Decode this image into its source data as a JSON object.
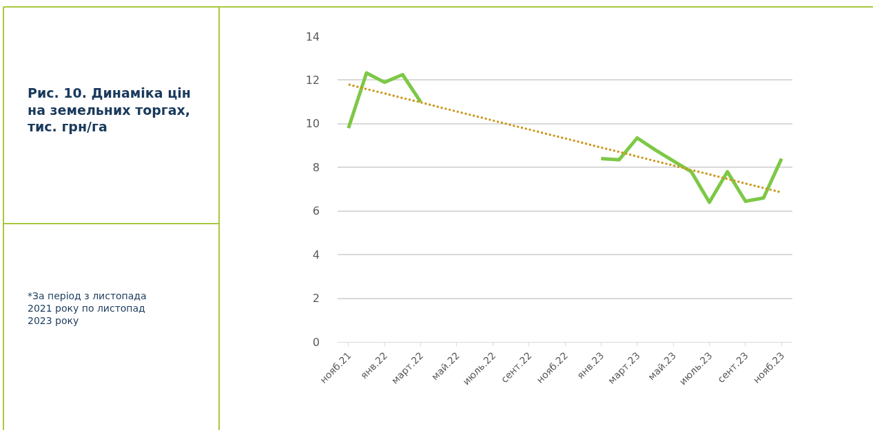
{
  "chart_data": {
    "type": "line",
    "title": "Рис. 10. Динаміка цін на земельних торгах, тис. грн/га",
    "annotations": [
      "*За період з листопада 2021 року по листопад 2023 року"
    ],
    "categories": [
      "нояб.21",
      null,
      "янв.22",
      null,
      "март.22",
      null,
      "май.22",
      null,
      "июль.22",
      null,
      "сент.22",
      null,
      "нояб.22",
      null,
      "янв.23",
      null,
      "март.23",
      null,
      "май.23",
      null,
      "июль.23",
      null,
      "сент.23",
      null,
      "нояб.23"
    ],
    "series": [
      {
        "color": "#7dc846",
        "values": [
          9.8,
          12.33,
          11.9,
          12.25,
          11.0,
          null,
          null,
          null,
          null,
          null,
          null,
          null,
          null,
          null,
          8.4,
          8.35,
          9.35,
          8.8,
          8.3,
          7.8,
          6.4,
          7.8,
          6.45,
          6.6,
          8.4
        ]
      },
      {
        "color": "#c9961a",
        "line_style": "dotted",
        "values": [
          11.8,
          11.59,
          11.39,
          11.18,
          10.98,
          10.77,
          10.56,
          10.36,
          10.15,
          9.94,
          9.74,
          9.53,
          9.33,
          9.12,
          8.91,
          8.71,
          8.5,
          8.29,
          8.09,
          7.88,
          7.68,
          7.47,
          7.26,
          7.06,
          6.85
        ]
      }
    ],
    "ylim": [
      0,
      14
    ],
    "yticks": [
      0,
      2,
      4,
      6,
      8,
      10,
      12,
      14
    ],
    "grid": "y",
    "marker": "none"
  }
}
